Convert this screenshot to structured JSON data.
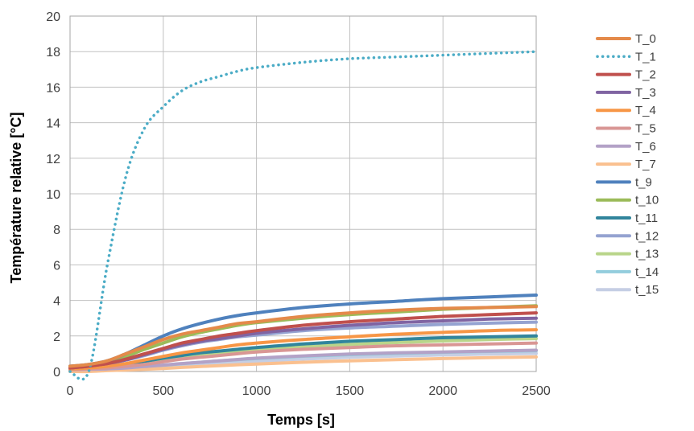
{
  "chart_data": {
    "type": "line",
    "title": "",
    "xlabel": "Temps [s]",
    "ylabel": "Température relative [°C]",
    "xlim": [
      0,
      2500
    ],
    "ylim": [
      0,
      20
    ],
    "xticks": [
      0,
      500,
      1000,
      1500,
      2000,
      2500
    ],
    "yticks": [
      0,
      2,
      4,
      6,
      8,
      10,
      12,
      14,
      16,
      18,
      20
    ],
    "xtick_labels": [
      "0",
      "500",
      "1000",
      "1500",
      "2000",
      "2500"
    ],
    "ytick_labels": [
      "0",
      "2",
      "4",
      "6",
      "8",
      "10",
      "12",
      "14",
      "16",
      "18",
      "20"
    ],
    "grid": true,
    "legend_position": "right",
    "x": [
      0,
      100,
      200,
      300,
      400,
      500,
      600,
      700,
      800,
      900,
      1000,
      1250,
      1500,
      1750,
      2000,
      2250,
      2500
    ],
    "series": [
      {
        "name": "T_0",
        "color": "#e48a4a",
        "style": "solid",
        "values": [
          0.3,
          0.4,
          0.6,
          1.0,
          1.4,
          1.8,
          2.1,
          2.3,
          2.5,
          2.7,
          2.8,
          3.1,
          3.3,
          3.45,
          3.55,
          3.6,
          3.65
        ]
      },
      {
        "name": "T_1",
        "color": "#4bacc6",
        "style": "dotted",
        "values": [
          0.0,
          0.0,
          6.0,
          11.0,
          13.7,
          14.9,
          15.8,
          16.3,
          16.6,
          16.9,
          17.1,
          17.4,
          17.6,
          17.7,
          17.8,
          17.9,
          18.0
        ]
      },
      {
        "name": "T_2",
        "color": "#c0504d",
        "style": "solid",
        "values": [
          0.2,
          0.3,
          0.45,
          0.7,
          1.0,
          1.3,
          1.6,
          1.8,
          2.0,
          2.15,
          2.3,
          2.6,
          2.8,
          2.95,
          3.1,
          3.2,
          3.3
        ]
      },
      {
        "name": "T_3",
        "color": "#8064a2",
        "style": "solid",
        "values": [
          0.2,
          0.3,
          0.45,
          0.65,
          0.95,
          1.25,
          1.5,
          1.7,
          1.85,
          2.0,
          2.15,
          2.4,
          2.6,
          2.75,
          2.85,
          2.95,
          3.0
        ]
      },
      {
        "name": "T_4",
        "color": "#f79646",
        "style": "solid",
        "values": [
          0.15,
          0.2,
          0.3,
          0.45,
          0.65,
          0.85,
          1.05,
          1.2,
          1.35,
          1.5,
          1.6,
          1.8,
          1.95,
          2.1,
          2.2,
          2.3,
          2.35
        ]
      },
      {
        "name": "T_5",
        "color": "#d99694",
        "style": "solid",
        "values": [
          0.1,
          0.15,
          0.2,
          0.3,
          0.4,
          0.55,
          0.7,
          0.8,
          0.9,
          1.0,
          1.1,
          1.25,
          1.35,
          1.45,
          1.5,
          1.55,
          1.6
        ]
      },
      {
        "name": "T_6",
        "color": "#b3a2c7",
        "style": "solid",
        "values": [
          0.1,
          0.12,
          0.15,
          0.2,
          0.28,
          0.36,
          0.45,
          0.52,
          0.6,
          0.68,
          0.75,
          0.88,
          0.98,
          1.05,
          1.1,
          1.15,
          1.2
        ]
      },
      {
        "name": "T_7",
        "color": "#fac08f",
        "style": "solid",
        "values": [
          0.0,
          0.0,
          0.05,
          0.08,
          0.12,
          0.17,
          0.23,
          0.28,
          0.33,
          0.38,
          0.42,
          0.52,
          0.6,
          0.67,
          0.73,
          0.78,
          0.82
        ]
      },
      {
        "name": "t_9",
        "color": "#4f81bd",
        "style": "solid",
        "values": [
          0.3,
          0.4,
          0.6,
          1.0,
          1.5,
          2.0,
          2.4,
          2.7,
          2.95,
          3.15,
          3.3,
          3.6,
          3.8,
          3.95,
          4.1,
          4.2,
          4.3
        ]
      },
      {
        "name": "t_10",
        "color": "#9bbb59",
        "style": "solid",
        "values": [
          0.25,
          0.35,
          0.55,
          0.85,
          1.25,
          1.6,
          1.95,
          2.2,
          2.4,
          2.6,
          2.75,
          3.0,
          3.2,
          3.35,
          3.5,
          3.6,
          3.7
        ]
      },
      {
        "name": "t_11",
        "color": "#31859c",
        "style": "solid",
        "values": [
          0.15,
          0.2,
          0.3,
          0.42,
          0.58,
          0.75,
          0.9,
          1.05,
          1.15,
          1.25,
          1.35,
          1.55,
          1.7,
          1.8,
          1.9,
          1.95,
          2.0
        ]
      },
      {
        "name": "t_12",
        "color": "#95a3d1",
        "style": "solid",
        "values": [
          0.2,
          0.3,
          0.45,
          0.65,
          0.9,
          1.2,
          1.45,
          1.65,
          1.8,
          1.95,
          2.05,
          2.3,
          2.45,
          2.55,
          2.65,
          2.72,
          2.78
        ]
      },
      {
        "name": "t_13",
        "color": "#b9d58a",
        "style": "solid",
        "values": [
          0.1,
          0.15,
          0.22,
          0.32,
          0.45,
          0.6,
          0.75,
          0.88,
          1.0,
          1.1,
          1.2,
          1.38,
          1.52,
          1.63,
          1.72,
          1.8,
          1.85
        ]
      },
      {
        "name": "t_14",
        "color": "#93cddd",
        "style": "solid",
        "values": [
          0.05,
          0.08,
          0.12,
          0.18,
          0.26,
          0.35,
          0.44,
          0.52,
          0.6,
          0.67,
          0.73,
          0.86,
          0.95,
          1.02,
          1.08,
          1.13,
          1.17
        ]
      },
      {
        "name": "t_15",
        "color": "#c5cee4",
        "style": "solid",
        "values": [
          0.05,
          0.07,
          0.1,
          0.14,
          0.2,
          0.27,
          0.34,
          0.41,
          0.47,
          0.53,
          0.58,
          0.7,
          0.8,
          0.87,
          0.93,
          0.98,
          1.02
        ]
      }
    ]
  }
}
